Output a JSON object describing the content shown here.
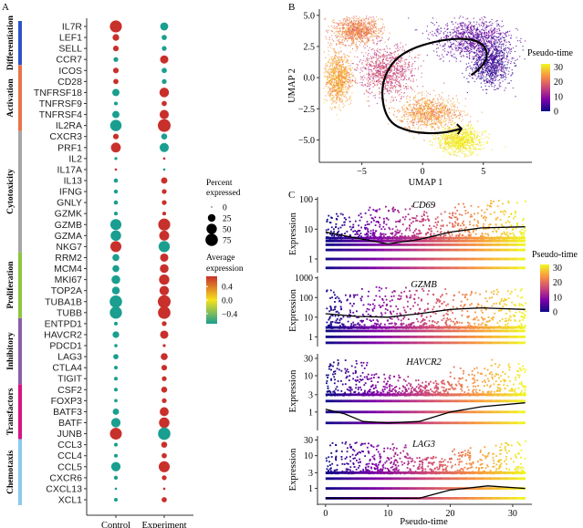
{
  "chart_data": [
    {
      "panel": "A",
      "type": "scatter",
      "subtype": "dot-plot",
      "xlabel": "",
      "ylabel": "",
      "categories": [
        "Control",
        "Experiment"
      ],
      "legend": {
        "size_title": "Percent expressed",
        "size_values": [
          0,
          25,
          50,
          75
        ],
        "color_title": "Average expression",
        "color_ticks": [
          0.4,
          0.0,
          -0.4
        ],
        "color_tick_labels": [
          "0.4",
          "0.0",
          "−0.4"
        ],
        "color_low": "#1a9e8f",
        "color_mid": "#f7e11c",
        "color_high": "#c8302b",
        "placement": "right"
      },
      "groups": [
        {
          "name": "Differentiation",
          "color": "#2c55c6",
          "genes": [
            "IL7R",
            "LEF1",
            "SELL",
            "CCR7"
          ]
        },
        {
          "name": "Activation",
          "color": "#e8734a",
          "genes": [
            "ICOS",
            "CD28",
            "TNFRSF18",
            "TNFRSF9",
            "TNFRSF4",
            "IL2RA"
          ]
        },
        {
          "name": "Cytotoxicity",
          "color": "#a6a6a6",
          "genes": [
            "CXCR3",
            "PRF1",
            "IL2",
            "IL17A",
            "IL13",
            "IFNG",
            "GNLY",
            "GZMK",
            "GZMB",
            "GZMA",
            "NKG7"
          ]
        },
        {
          "name": "Proliferation",
          "color": "#8cc63f",
          "genes": [
            "RRM2",
            "MCM4",
            "MKI67",
            "TOP2A",
            "TUBA1B",
            "TUBB"
          ]
        },
        {
          "name": "Inhibitory",
          "color": "#8a5fa8",
          "genes": [
            "ENTPD1",
            "HAVCR2",
            "PDCD1",
            "LAG3",
            "CTLA4",
            "TIGIT"
          ]
        },
        {
          "name": "Transfactors",
          "color": "#d6157f",
          "genes": [
            "CSF2",
            "FOXP3",
            "BATF3",
            "BATF",
            "JUNB"
          ]
        },
        {
          "name": "Chemotaxis",
          "color": "#8dc9ee",
          "genes": [
            "CCL3",
            "CCL4",
            "CCL5",
            "CXCR6",
            "CXCL13",
            "XCL1"
          ]
        }
      ],
      "genes": [
        "IL7R",
        "LEF1",
        "SELL",
        "CCR7",
        "ICOS",
        "CD28",
        "TNFRSF18",
        "TNFRSF9",
        "TNFRSF4",
        "IL2RA",
        "CXCR3",
        "PRF1",
        "IL2",
        "IL17A",
        "IL13",
        "IFNG",
        "GNLY",
        "GZMK",
        "GZMB",
        "GZMA",
        "NKG7",
        "RRM2",
        "MCM4",
        "MKI67",
        "TOP2A",
        "TUBA1B",
        "TUBB",
        "ENTPD1",
        "HAVCR2",
        "PDCD1",
        "LAG3",
        "CTLA4",
        "TIGIT",
        "CSF2",
        "FOXP3",
        "BATF3",
        "BATF",
        "JUNB",
        "CCL3",
        "CCL4",
        "CCL5",
        "CXCR6",
        "CXCL13",
        "XCL1"
      ],
      "series": [
        {
          "name": "Control",
          "percent": [
            70,
            18,
            12,
            8,
            12,
            10,
            22,
            4,
            22,
            62,
            12,
            45,
            2,
            1,
            6,
            5,
            6,
            4,
            58,
            52,
            58,
            20,
            20,
            34,
            26,
            75,
            72,
            4,
            18,
            3,
            10,
            4,
            4,
            4,
            3,
            16,
            40,
            68,
            4,
            4,
            40,
            5,
            1,
            4
          ],
          "avg_expr": [
            0.5,
            0.5,
            0.5,
            -0.5,
            0.5,
            0.5,
            -0.5,
            -0.5,
            -0.5,
            -0.5,
            0.5,
            0.5,
            -0.5,
            0.5,
            -0.5,
            -0.5,
            -0.5,
            -0.5,
            -0.5,
            -0.5,
            0.5,
            -0.5,
            -0.5,
            -0.5,
            -0.5,
            -0.5,
            -0.5,
            -0.5,
            -0.5,
            -0.5,
            -0.5,
            -0.5,
            -0.5,
            -0.5,
            -0.5,
            -0.5,
            -0.5,
            0.5,
            -0.5,
            -0.5,
            -0.5,
            -0.5,
            -0.5,
            -0.5
          ]
        },
        {
          "name": "Experiment",
          "percent": [
            28,
            10,
            8,
            30,
            10,
            8,
            42,
            10,
            38,
            80,
            14,
            38,
            1,
            1,
            16,
            8,
            8,
            4,
            70,
            46,
            60,
            30,
            34,
            50,
            42,
            80,
            76,
            8,
            30,
            2,
            20,
            12,
            8,
            14,
            8,
            36,
            52,
            75,
            14,
            10,
            58,
            8,
            1,
            10
          ],
          "avg_expr": [
            -0.5,
            -0.5,
            -0.5,
            0.5,
            -0.5,
            -0.5,
            0.5,
            0.5,
            0.5,
            0.5,
            -0.5,
            -0.5,
            0.5,
            -0.5,
            0.5,
            0.5,
            0.5,
            0.5,
            0.5,
            0.5,
            -0.5,
            0.5,
            0.5,
            0.5,
            0.5,
            0.5,
            0.5,
            0.5,
            0.5,
            0.5,
            0.5,
            0.5,
            0.5,
            0.5,
            0.5,
            0.5,
            0.5,
            -0.5,
            0.5,
            0.5,
            0.5,
            0.5,
            0.5,
            0.5
          ]
        }
      ]
    },
    {
      "panel": "B",
      "type": "scatter",
      "subtype": "umap",
      "xlabel": "UMAP 1",
      "ylabel": "UMAP 2",
      "xticks": [
        -5,
        0,
        5
      ],
      "yticks": [
        5.0,
        2.5,
        0.0,
        -2.5,
        -5.0
      ],
      "ytick_labels": [
        "5.0",
        "2.5",
        "0.0",
        "−2.5",
        "−5.0"
      ],
      "xtick_labels": [
        "−5",
        "0",
        "5"
      ],
      "xlim": [
        -8.5,
        9
      ],
      "ylim": [
        -6.8,
        5.5
      ],
      "legend": {
        "title": "Pseudo-time",
        "ticks": [
          30,
          20,
          10,
          0
        ],
        "placement": "right"
      },
      "colormap": [
        "#0d0887",
        "#7e03a8",
        "#cc4778",
        "#f89540",
        "#f0f921"
      ],
      "clusters": [
        {
          "label": "top-left",
          "center": [
            -5.5,
            3.8
          ],
          "spread": [
            1.8,
            1.0
          ],
          "pseudotime": 22
        },
        {
          "label": "left",
          "center": [
            -7.0,
            0.0
          ],
          "spread": [
            1.0,
            1.8
          ],
          "pseudotime": 25
        },
        {
          "label": "middle",
          "center": [
            -3.0,
            0.5
          ],
          "spread": [
            2.0,
            1.8
          ],
          "pseudotime": 16
        },
        {
          "label": "upper-right",
          "center": [
            4.0,
            3.2
          ],
          "spread": [
            2.8,
            1.4
          ],
          "pseudotime": 6
        },
        {
          "label": "right-lobe",
          "center": [
            5.5,
            1.2
          ],
          "spread": [
            1.5,
            1.6
          ],
          "pseudotime": 3
        },
        {
          "label": "lower-middle",
          "center": [
            0.5,
            -2.8
          ],
          "spread": [
            2.2,
            1.2
          ],
          "pseudotime": 24
        },
        {
          "label": "bottom",
          "center": [
            3.0,
            -5.0
          ],
          "spread": [
            1.6,
            1.0
          ],
          "pseudotime": 31
        }
      ],
      "trajectory": [
        [
          4.0,
          0.2
        ],
        [
          5.5,
          1.2
        ],
        [
          5.0,
          3.0
        ],
        [
          2.0,
          3.2
        ],
        [
          -2.0,
          2.0
        ],
        [
          -3.5,
          -0.5
        ],
        [
          -3.0,
          -3.5
        ],
        [
          -1.0,
          -4.4
        ],
        [
          1.5,
          -4.5
        ],
        [
          3.2,
          -4.1
        ]
      ]
    },
    {
      "panel": "C",
      "type": "scatter",
      "subtype": "pseudotime-expression",
      "xlabel": "Pseudo-time",
      "ylabel": "Expression",
      "xticks": [
        0,
        10,
        20,
        30
      ],
      "xlim": [
        -1,
        32.5
      ],
      "legend": {
        "title": "Pseudo-time",
        "ticks": [
          30,
          20,
          10,
          0
        ],
        "placement": "right"
      },
      "genes": [
        {
          "name": "CD69",
          "yticks": [
            1,
            10,
            100
          ],
          "ylim": [
            0.4,
            120
          ],
          "levels": [
            0.5,
            1,
            2,
            3,
            4,
            5
          ],
          "max_top": [
            40,
            60,
            70,
            80,
            100
          ],
          "trend": [
            [
              0,
              8
            ],
            [
              5,
              5
            ],
            [
              10,
              3.2
            ],
            [
              15,
              4.5
            ],
            [
              20,
              8
            ],
            [
              25,
              11
            ],
            [
              32,
              12
            ]
          ]
        },
        {
          "name": "GZMB",
          "yticks": [
            1,
            10,
            100,
            1000
          ],
          "ylim": [
            0.4,
            1200
          ],
          "levels": [
            0.5,
            1,
            2,
            3
          ],
          "max_top": [
            300,
            400,
            300,
            250,
            300
          ],
          "trend": [
            [
              0,
              15
            ],
            [
              5,
              11
            ],
            [
              10,
              10
            ],
            [
              15,
              15
            ],
            [
              20,
              25
            ],
            [
              25,
              30
            ],
            [
              32,
              25
            ]
          ]
        },
        {
          "name": "HAVCR2",
          "yticks": [
            1,
            3,
            10,
            30
          ],
          "ylim": [
            0.35,
            40
          ],
          "levels": [
            0.5,
            1,
            2,
            3
          ],
          "max_top": [
            30,
            12,
            8,
            20,
            30
          ],
          "trend": [
            [
              0,
              1.2
            ],
            [
              3,
              0.9
            ],
            [
              6,
              0.55
            ],
            [
              10,
              0.5
            ],
            [
              15,
              0.55
            ],
            [
              20,
              1.0
            ],
            [
              25,
              1.4
            ],
            [
              32,
              1.8
            ]
          ]
        },
        {
          "name": "LAG3",
          "yticks": [
            1,
            3,
            10,
            30
          ],
          "ylim": [
            0.35,
            40
          ],
          "levels": [
            0.5,
            1,
            2,
            3
          ],
          "max_top": [
            30,
            25,
            10,
            20,
            30
          ],
          "trend": [
            [
              0,
              0.5
            ],
            [
              10,
              0.5
            ],
            [
              15,
              0.5
            ],
            [
              20,
              0.9
            ],
            [
              26,
              1.2
            ],
            [
              32,
              1.0
            ]
          ]
        }
      ]
    }
  ],
  "panel_labels": {
    "a": "A",
    "b": "B",
    "c": "C"
  }
}
